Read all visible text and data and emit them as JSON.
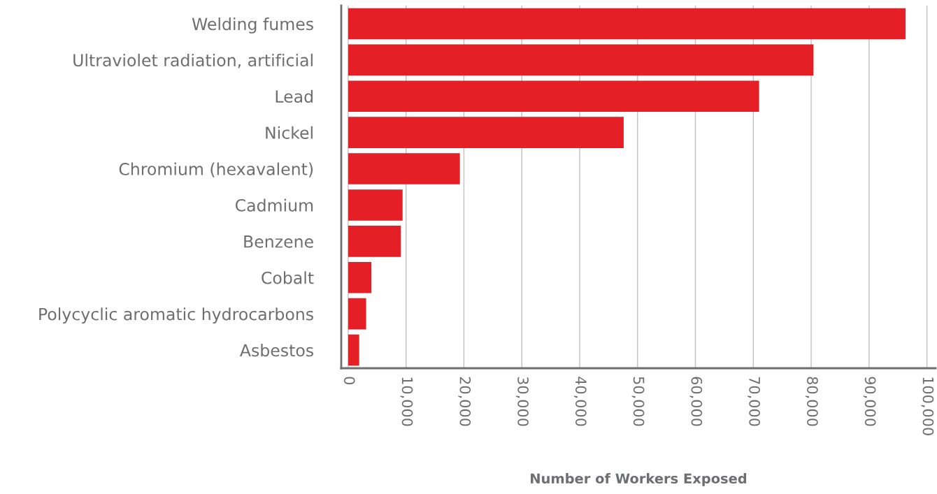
{
  "chart_data": {
    "type": "bar",
    "orientation": "horizontal",
    "xlabel": "Number of Workers Exposed",
    "categories": [
      "Welding fumes",
      "Ultraviolet radiation, artificial",
      "Lead",
      "Nickel",
      "Chromium (hexavalent)",
      "Cadmium",
      "Benzene",
      "Cobalt",
      "Polycyclic aromatic hydrocarbons",
      "Asbestos"
    ],
    "values": [
      96300,
      80400,
      71000,
      47600,
      19300,
      9400,
      9100,
      4000,
      3100,
      1900
    ],
    "color": "#e41f26",
    "xlim": [
      -1200,
      101500
    ],
    "xticks": [
      {
        "value": 0,
        "label": "0"
      },
      {
        "value": 10000,
        "label": "10,000"
      },
      {
        "value": 20000,
        "label": "20,000"
      },
      {
        "value": 30000,
        "label": "30,000"
      },
      {
        "value": 40000,
        "label": "40,000"
      },
      {
        "value": 50000,
        "label": "50,000"
      },
      {
        "value": 60000,
        "label": "60,000"
      },
      {
        "value": 70000,
        "label": "70,000"
      },
      {
        "value": 80000,
        "label": "80,000"
      },
      {
        "value": 90000,
        "label": "90,000"
      },
      {
        "value": 100000,
        "label": "100,000"
      }
    ],
    "grid": "x"
  }
}
